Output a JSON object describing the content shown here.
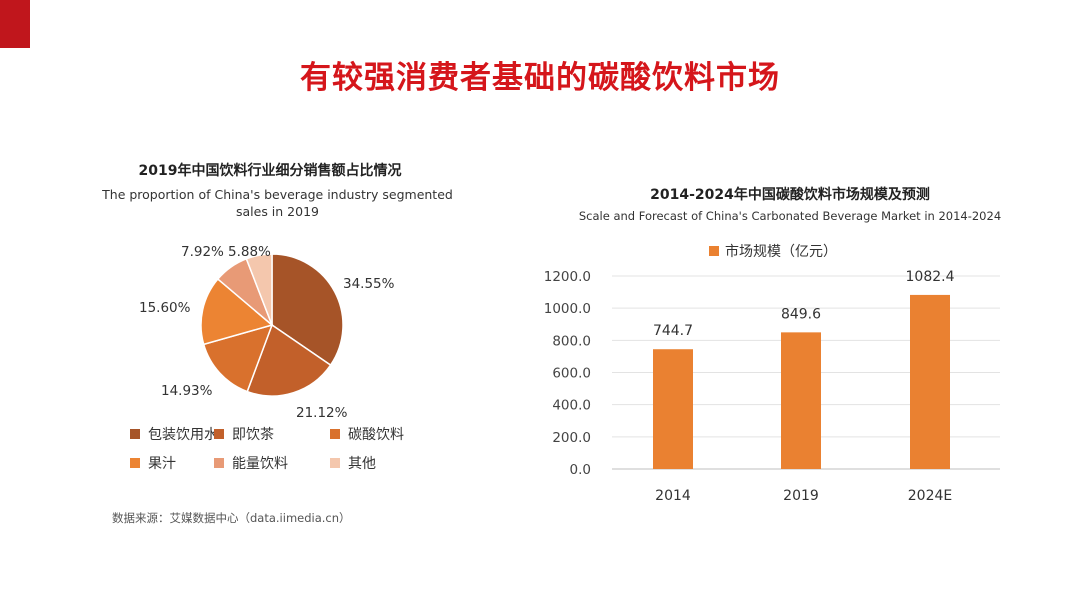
{
  "page": {
    "title": "有较强消费者基础的碳酸饮料市场",
    "accent_color": "#c0161c",
    "title_color": "#d5161b"
  },
  "pie": {
    "title_cn": "2019年中国饮料行业细分销售额占比情况",
    "title_en": "The proportion of China's beverage industry segmented sales in 2019",
    "source": "数据来源：艾媒数据中心（data.iimedia.cn）"
  },
  "bar": {
    "title_cn": "2014-2024年中国碳酸饮料市场规模及预测",
    "title_en": "Scale and Forecast of China's Carbonated Beverage Market in 2014-2024"
  },
  "chart_data": [
    {
      "type": "pie",
      "title": "2019年中国饮料行业细分销售额占比情况",
      "subtitle": "The proportion of China's beverage industry segmented sales in 2019",
      "slices": [
        {
          "label": "包装饮用水",
          "value": 34.55,
          "display": "34.55%",
          "color": "#a65428"
        },
        {
          "label": "即饮茶",
          "value": 21.12,
          "display": "21.12%",
          "color": "#c2602a"
        },
        {
          "label": "碳酸饮料",
          "value": 14.93,
          "display": "14.93%",
          "color": "#d9712d"
        },
        {
          "label": "果汁",
          "value": 15.6,
          "display": "15.60%",
          "color": "#ec8433"
        },
        {
          "label": "能量饮料",
          "value": 7.92,
          "display": "7.92%",
          "color": "#e89a76"
        },
        {
          "label": "其他",
          "value": 5.88,
          "display": "5.88%",
          "color": "#f4c7ad"
        }
      ],
      "legend_position": "bottom"
    },
    {
      "type": "bar",
      "title": "2014-2024年中国碳酸饮料市场规模及预测",
      "subtitle": "Scale and Forecast of China's Carbonated Beverage Market in 2014-2024",
      "categories": [
        "2014",
        "2019",
        "2024E"
      ],
      "series": [
        {
          "name": "市场规模（亿元）",
          "values": [
            744.7,
            849.6,
            1082.4
          ],
          "color": "#ea8131"
        }
      ],
      "data_labels": [
        "744.7",
        "849.6",
        "1082.4"
      ],
      "yticks": [
        "0.0",
        "200.0",
        "400.0",
        "600.0",
        "800.0",
        "1000.0",
        "1200.0"
      ],
      "ylim": [
        0,
        1200
      ],
      "grid": true,
      "legend_position": "top"
    }
  ]
}
